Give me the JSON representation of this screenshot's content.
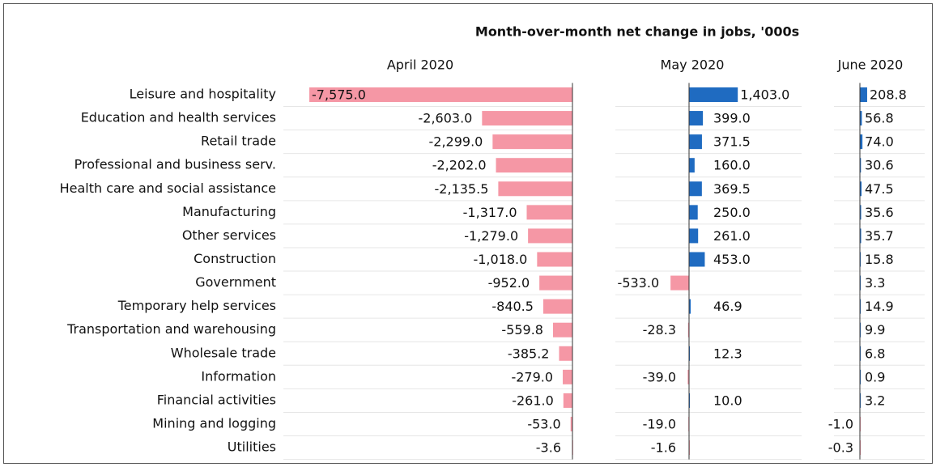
{
  "chart_data": {
    "type": "bar",
    "title": "Month-over-month net change in jobs, '000s",
    "categories": [
      "Leisure and hospitality",
      "Education and health services",
      "Retail trade",
      "Professional and business serv.",
      "Health care and social assistance",
      "Manufacturing",
      "Other services",
      "Construction",
      "Government",
      "Temporary help services",
      "Transportation and warehousing",
      "Wholesale trade",
      "Information",
      "Financial activities",
      "Mining and logging",
      "Utilities"
    ],
    "positive_color": "#1f6bc1",
    "negative_color": "#f597a5",
    "series": [
      {
        "name": "April 2020",
        "values": [
          -7575.0,
          -2603.0,
          -2299.0,
          -2202.0,
          -2135.5,
          -1317.0,
          -1279.0,
          -1018.0,
          -952.0,
          -840.5,
          -559.8,
          -385.2,
          -279.0,
          -261.0,
          -53.0,
          -3.6
        ],
        "value_labels": [
          "-7,575.0",
          "-2,603.0",
          "-2,299.0",
          "-2,202.0",
          "-2,135.5",
          "-1,317.0",
          "-1,279.0",
          "-1,018.0",
          "-952.0",
          "-840.5",
          "-559.8",
          "-385.2",
          "-279.0",
          "-261.0",
          "-53.0",
          "-3.6"
        ]
      },
      {
        "name": "May 2020",
        "values": [
          1403.0,
          399.0,
          371.5,
          160.0,
          369.5,
          250.0,
          261.0,
          453.0,
          -533.0,
          46.9,
          -28.3,
          12.3,
          -39.0,
          10.0,
          -19.0,
          -1.6
        ],
        "value_labels": [
          "1,403.0",
          "399.0",
          "371.5",
          "160.0",
          "369.5",
          "250.0",
          "261.0",
          "453.0",
          "-533.0",
          "46.9",
          "-28.3",
          "12.3",
          "-39.0",
          "10.0",
          "-19.0",
          "-1.6"
        ]
      },
      {
        "name": "June 2020",
        "values": [
          208.8,
          56.8,
          74.0,
          30.6,
          47.5,
          35.6,
          35.7,
          15.8,
          3.3,
          14.9,
          9.9,
          6.8,
          0.9,
          3.2,
          -1.0,
          -0.3
        ],
        "value_labels": [
          "208.8",
          "56.8",
          "74.0",
          "30.6",
          "47.5",
          "35.6",
          "35.7",
          "15.8",
          "3.3",
          "14.9",
          "9.9",
          "6.8",
          "0.9",
          "3.2",
          "-1.0",
          "-0.3"
        ]
      }
    ]
  }
}
